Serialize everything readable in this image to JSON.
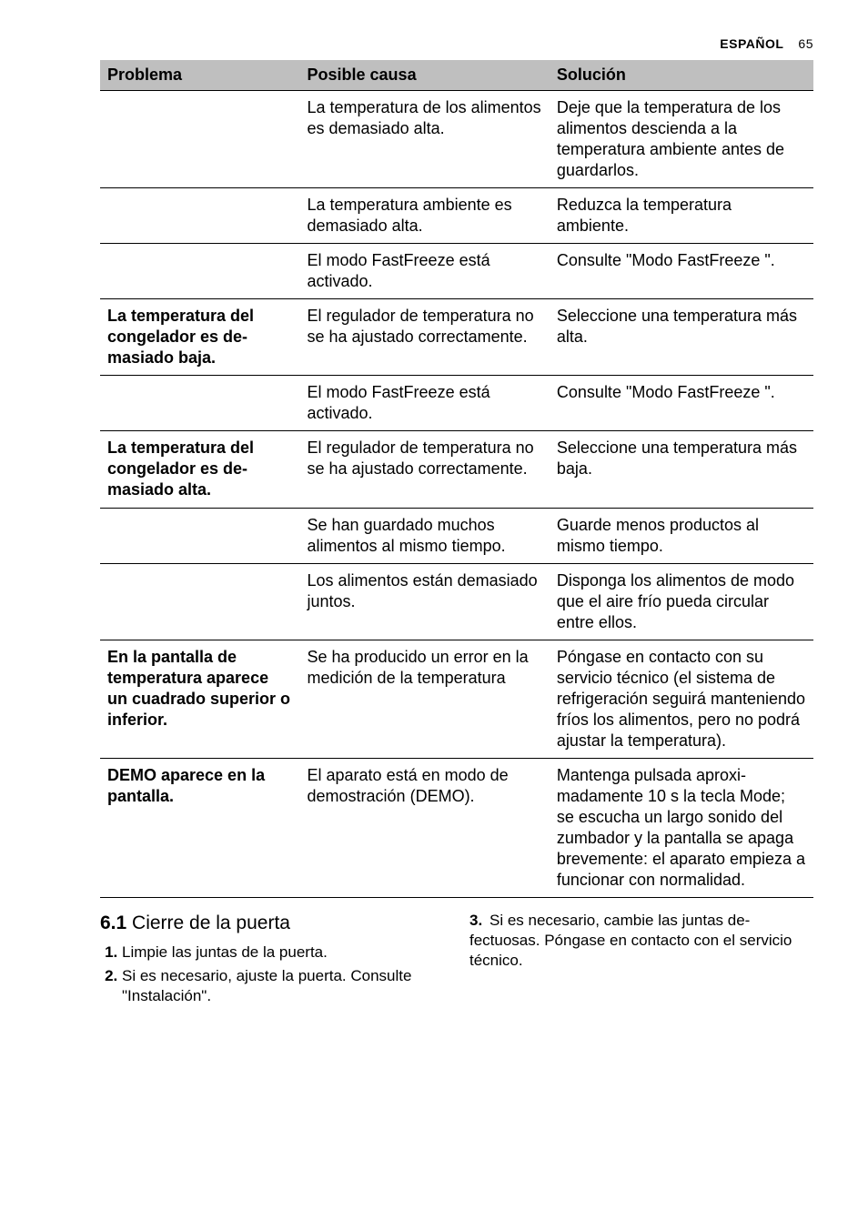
{
  "header": {
    "lang": "ESPAÑOL",
    "page_number": "65"
  },
  "table": {
    "headers": {
      "problem": "Problema",
      "cause": "Posible causa",
      "solution": "Solución"
    },
    "rows": [
      {
        "problem": "",
        "cause": "La temperatura de los ali­mentos es demasiado al­ta.",
        "solution": "Deje que la temperatura de los alimentos descienda a la temperatura ambiente antes de guardarlos."
      },
      {
        "problem": "",
        "cause": "La temperatura ambiente es demasiado alta.",
        "solution": "Reduzca la temperatura ambiente."
      },
      {
        "problem": "",
        "cause": "El modo FastFreeze está activado.",
        "solution": "Consulte \"Modo FastFreeze \"."
      },
      {
        "problem": "La temperatura del congelador es de­masiado baja.",
        "cause": "El regulador de temperatu­ra no se ha ajustado co­rrectamente.",
        "solution": "Seleccione una temperatu­ra más alta."
      },
      {
        "problem": "",
        "cause": "El modo FastFreeze está activado.",
        "solution": "Consulte \"Modo FastFreeze \"."
      },
      {
        "problem": "La temperatura del congelador es de­masiado alta.",
        "cause": "El regulador de temperatu­ra no se ha ajustado co­rrectamente.",
        "solution": "Seleccione una temperatu­ra más baja."
      },
      {
        "problem": "",
        "cause": "Se han guardado muchos alimentos al mismo tiem­po.",
        "solution": "Guarde menos productos al mismo tiempo."
      },
      {
        "problem": "",
        "cause": "Los alimentos están de­masiado juntos.",
        "solution": "Disponga los alimentos de modo que el aire frío pueda circular entre ellos."
      },
      {
        "problem": "En la pantalla de temperatura apare­ce un cuadrado su­perior o inferior.",
        "cause": "Se ha producido un error en la medición de la tem­peratura",
        "solution": "Póngase en contacto con su servicio técnico (el siste­ma de refrigeración seguirá manteniendo fríos los ali­mentos, pero no podrá ajustar la temperatura)."
      },
      {
        "problem": "DEMO aparece en la pantalla.",
        "cause": "El aparato está en modo de demostración (DEMO).",
        "solution": "Mantenga pulsada aproxi­madamente 10 s la tecla Mode; se escucha un largo sonido del zumbador y la pantalla se apaga breve­mente: el aparato empieza a funcionar con normalidad."
      }
    ]
  },
  "section": {
    "number": "6.1",
    "title": "Cierre de la puerta",
    "steps_left": [
      "Limpie las juntas de la puerta.",
      "Si es necesario, ajuste la puerta. Con­sulte \"Instalación\"."
    ],
    "right_step_num": "3.",
    "right_step": "Si es necesario, cambie las juntas de­fectuosas. Póngase en contacto con el servicio técnico."
  }
}
